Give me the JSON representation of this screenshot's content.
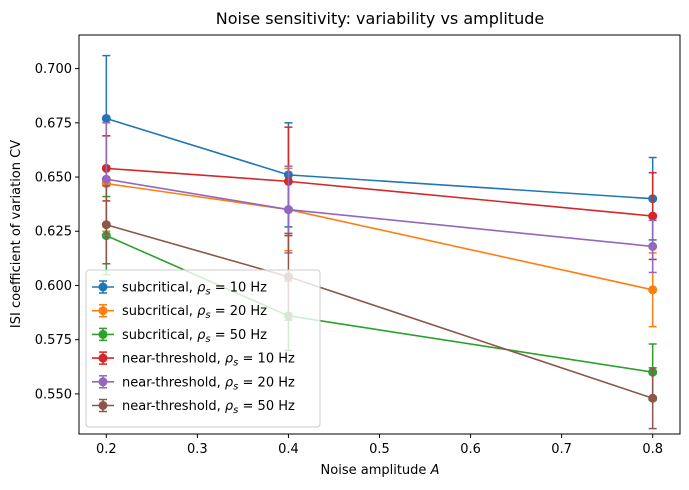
{
  "chart_data": {
    "type": "line",
    "title": "Noise sensitivity: variability vs amplitude",
    "xlabel": "Noise amplitude",
    "xlabel_symbol": "A",
    "ylabel": "ISI coefficient of variation CV",
    "x": [
      0.2,
      0.4,
      0.8
    ],
    "xlim": [
      0.17,
      0.83
    ],
    "ylim": [
      0.5315,
      0.7155
    ],
    "xticks": [
      "0.2",
      "0.3",
      "0.4",
      "0.5",
      "0.6",
      "0.7",
      "0.8"
    ],
    "yticks": [
      "0.550",
      "0.575",
      "0.600",
      "0.625",
      "0.650",
      "0.675",
      "0.700"
    ],
    "legend_position": "lower-left",
    "series": [
      {
        "name": "subcritical, ρs = 10 Hz",
        "group": "subcritical,",
        "rho": "10 Hz",
        "color": "#1f77b4",
        "values": [
          0.677,
          0.651,
          0.64
        ],
        "errors": [
          0.029,
          0.024,
          0.019
        ]
      },
      {
        "name": "subcritical, ρs = 20 Hz",
        "group": "subcritical,",
        "rho": "20 Hz",
        "color": "#ff7f0e",
        "values": [
          0.647,
          0.635,
          0.598
        ],
        "errors": [
          0.022,
          0.019,
          0.017
        ]
      },
      {
        "name": "subcritical, ρs = 50 Hz",
        "group": "subcritical,",
        "rho": "50 Hz",
        "color": "#2ca02c",
        "values": [
          0.623,
          0.586,
          0.56
        ],
        "errors": [
          0.018,
          0.016,
          0.013
        ]
      },
      {
        "name": "near-threshold, ρs = 10 Hz",
        "group": "near-threshold,",
        "rho": "10 Hz",
        "color": "#d62728",
        "values": [
          0.654,
          0.648,
          0.632
        ],
        "errors": [
          0.015,
          0.025,
          0.02
        ]
      },
      {
        "name": "near-threshold, ρs = 20 Hz",
        "group": "near-threshold,",
        "rho": "20 Hz",
        "color": "#9467bd",
        "values": [
          0.649,
          0.635,
          0.618
        ],
        "errors": [
          0.026,
          0.02,
          0.012
        ]
      },
      {
        "name": "near-threshold, ρs = 50 Hz",
        "group": "near-threshold,",
        "rho": "50 Hz",
        "color": "#8c564b",
        "values": [
          0.628,
          0.604,
          0.548
        ],
        "errors": [
          0.018,
          0.02,
          0.014
        ]
      }
    ]
  }
}
